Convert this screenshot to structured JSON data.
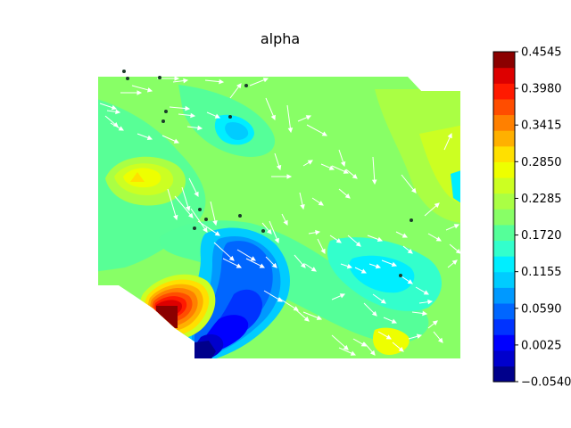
{
  "chart_data": {
    "type": "heatmap",
    "subtype": "filled-contour with quiver arrows and scatter markers",
    "title": "alpha",
    "xlabel": "",
    "ylabel": "",
    "axes_visible": false,
    "colormap": "jet",
    "colorbar": {
      "location": "right",
      "vmin": -0.054,
      "vmax": 0.4545,
      "ticks": [
        -0.054,
        0.0025,
        0.059,
        0.1155,
        0.172,
        0.2285,
        0.285,
        0.3415,
        0.398,
        0.4545
      ],
      "tick_labels": [
        "−0.0540",
        "0.0025",
        "0.0590",
        "0.1155",
        "0.1720",
        "0.2285",
        "0.2850",
        "0.3415",
        "0.3980",
        "0.4545"
      ],
      "level_colors": [
        "#00008b",
        "#0000cd",
        "#0000ff",
        "#0033ff",
        "#0066ff",
        "#0099ff",
        "#00ccff",
        "#00eeff",
        "#33ffcc",
        "#55ff99",
        "#88ff66",
        "#aaff44",
        "#ccff22",
        "#eeff00",
        "#ffe000",
        "#ffb000",
        "#ff8000",
        "#ff4d00",
        "#ff1a00",
        "#dd0000",
        "#8b0000"
      ]
    },
    "field_summary": [
      {
        "region": "west",
        "value": 0.29,
        "note": "yellow hotspot"
      },
      {
        "region": "south-west",
        "value": 0.4545,
        "note": "dark red maximum"
      },
      {
        "region": "south-centre",
        "value": -0.054,
        "note": "dark blue minimum"
      },
      {
        "region": "north-centre",
        "value": 0.12,
        "note": "cyan pocket"
      },
      {
        "region": "east",
        "value": 0.25,
        "note": "green-yellow band"
      },
      {
        "region": "south-east",
        "value": 0.28,
        "note": "yellow patch"
      },
      {
        "region": "background",
        "value": 0.2,
        "note": "green"
      }
    ],
    "grid": false,
    "legend": "none"
  }
}
